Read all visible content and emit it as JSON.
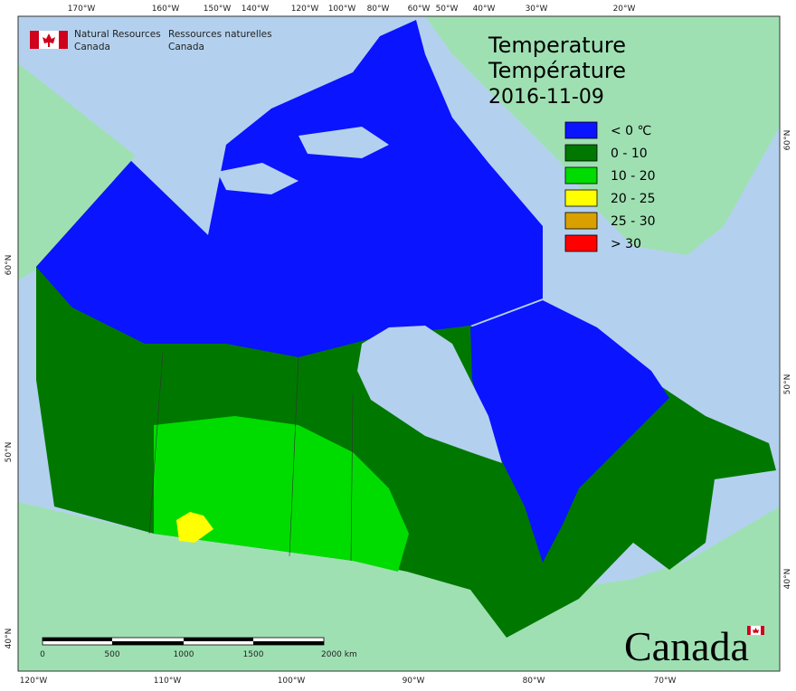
{
  "header": {
    "agency_en": [
      "Natural Resources",
      "Canada"
    ],
    "agency_fr": [
      "Ressources naturelles",
      "Canada"
    ]
  },
  "title": [
    "Temperature",
    "Température",
    "2016-11-09"
  ],
  "legend": [
    {
      "label": "< 0 ℃",
      "color": "#0a14ff"
    },
    {
      "label": "0 - 10",
      "color": "#007800"
    },
    {
      "label": "10 - 20",
      "color": "#00dc00"
    },
    {
      "label": "20 - 25",
      "color": "#ffff00"
    },
    {
      "label": "25 - 30",
      "color": "#d9a000"
    },
    {
      "label": "> 30",
      "color": "#ff0000"
    }
  ],
  "graticule": {
    "top": [
      "170°W",
      "160°W",
      "150°W",
      "140°W",
      "120°W",
      "100°W",
      "80°W",
      "60°W",
      "50°W",
      "40°W",
      "30°W",
      "20°W"
    ],
    "bottom": [
      "120°W",
      "110°W",
      "100°W",
      "90°W",
      "80°W",
      "70°W"
    ],
    "left": [
      "60°N",
      "50°N",
      "40°N"
    ],
    "right": [
      "60°N",
      "50°N",
      "40°N"
    ]
  },
  "scale_bar": {
    "labels": [
      "0",
      "500",
      "1000",
      "1500",
      "2000 km"
    ]
  },
  "wordmark": "Canada"
}
